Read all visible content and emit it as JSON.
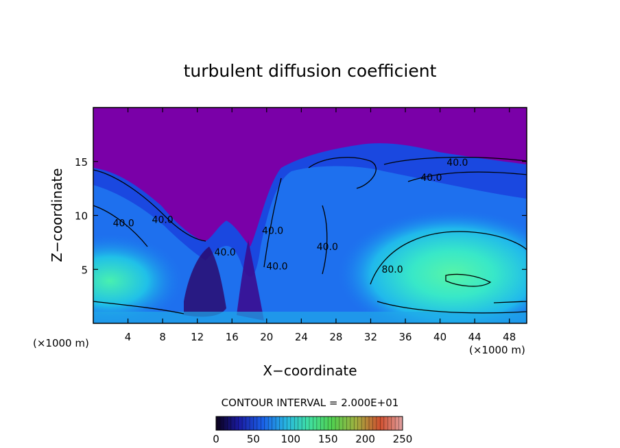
{
  "chart_data": {
    "type": "heatmap",
    "title": "turbulent diffusion coefficient",
    "xlabel": "X−coordinate",
    "ylabel": "Z−coordinate",
    "x_unit": "(×1000 m)",
    "x_unit_right": "(×1000 m)",
    "xlim": [
      0,
      50
    ],
    "ylim": [
      0,
      20
    ],
    "xticks": [
      4,
      8,
      12,
      16,
      20,
      24,
      28,
      32,
      36,
      40,
      44,
      48
    ],
    "yticks": [
      5,
      10,
      15
    ],
    "contour_interval_label": "CONTOUR INTERVAL = 2.000E+01",
    "contour_interval": 20,
    "contour_labels": [
      {
        "text": "40.0",
        "x": 3.5,
        "z": 9.0
      },
      {
        "text": "40.0",
        "x": 8.0,
        "z": 9.3
      },
      {
        "text": "40.0",
        "x": 15.2,
        "z": 6.3
      },
      {
        "text": "40.0",
        "x": 20.7,
        "z": 8.3
      },
      {
        "text": "40.0",
        "x": 21.2,
        "z": 5.0
      },
      {
        "text": "40.0",
        "x": 27.0,
        "z": 6.8
      },
      {
        "text": "40.0",
        "x": 42.0,
        "z": 14.6
      },
      {
        "text": "40.0",
        "x": 39.0,
        "z": 13.2
      },
      {
        "text": "80.0",
        "x": 34.5,
        "z": 4.7
      }
    ],
    "colorbar": {
      "range": [
        0,
        250
      ],
      "ticks": [
        0,
        50,
        100,
        150,
        200,
        250
      ],
      "colors": [
        "#0a0018",
        "#1a1aa0",
        "#1a60e8",
        "#28b8e0",
        "#40e0a0",
        "#50d050",
        "#a0b040",
        "#d05030",
        "#e0a0a0"
      ]
    },
    "palette": {
      "sky": "#7a00a8",
      "deep_blue": "#1040d8",
      "blue": "#2080f0",
      "cyan": "#20c8e8",
      "aqua": "#38e8c0",
      "green": "#50f0a0",
      "dark": "#2a0a60"
    }
  }
}
